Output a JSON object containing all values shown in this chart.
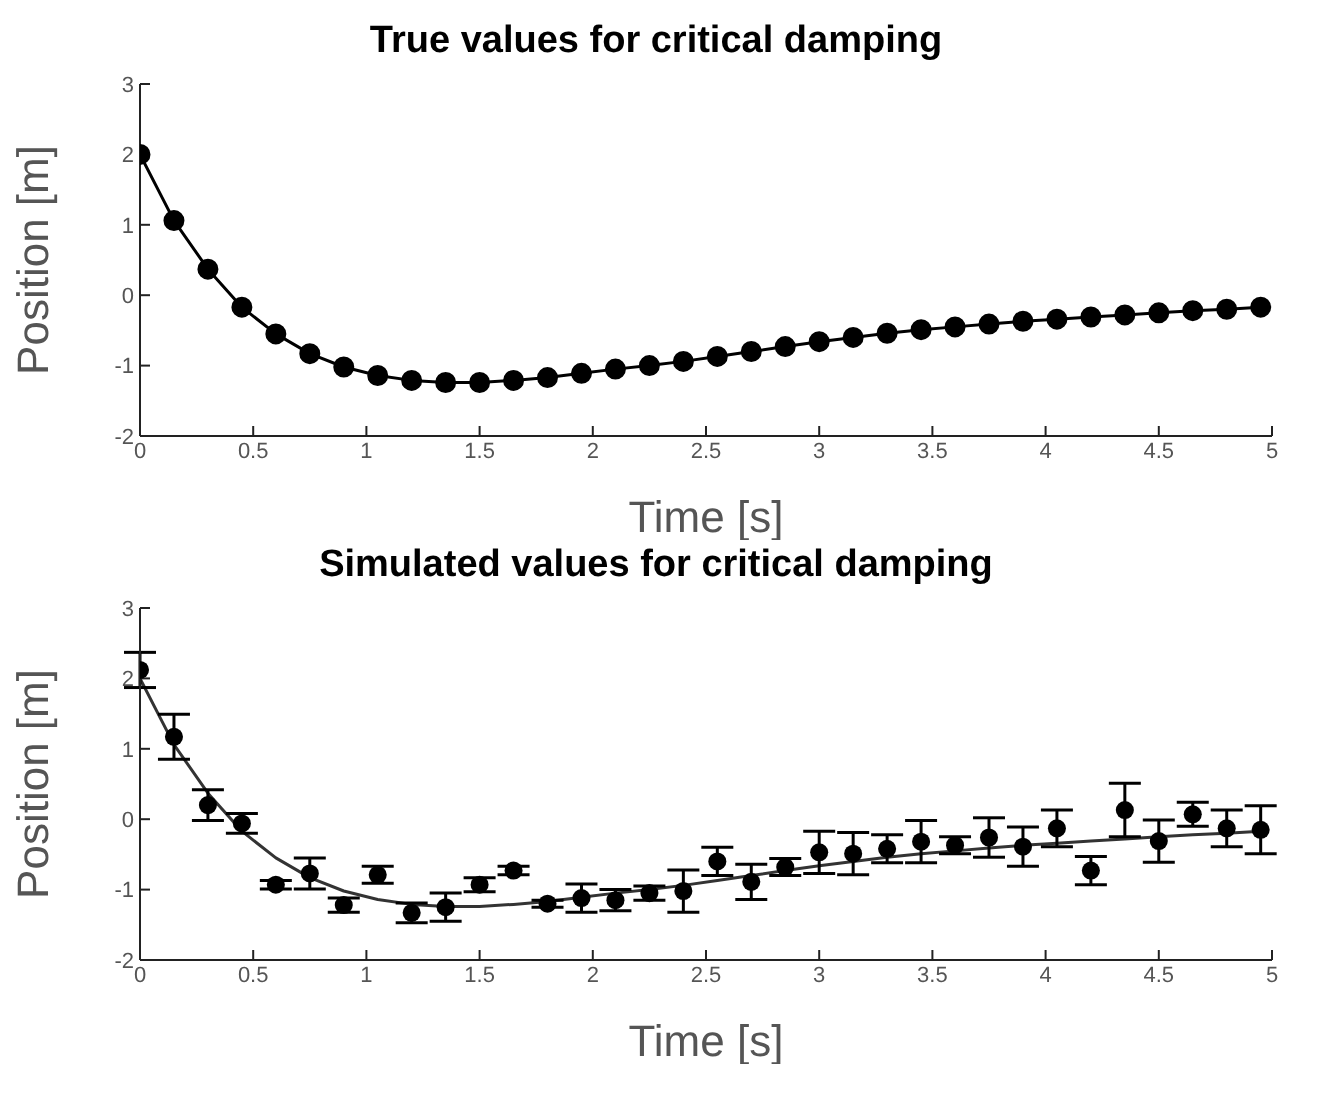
{
  "chart_data": [
    {
      "type": "line",
      "title": "True values for critical damping",
      "xlabel": "Time [s]",
      "ylabel": "Position [m]",
      "xlim": [
        0,
        5
      ],
      "xticks": [
        0,
        0.5,
        1,
        1.5,
        2,
        2.5,
        3,
        3.5,
        4,
        4.5,
        5
      ],
      "ylim": [
        -2,
        3
      ],
      "yticks": [
        -2,
        -1,
        0,
        1,
        2,
        3
      ],
      "grid": false,
      "marker": "circle",
      "line_style": "solid",
      "x": [
        0,
        0.15,
        0.3,
        0.45,
        0.6,
        0.75,
        0.9,
        1.05,
        1.2,
        1.35,
        1.5,
        1.65,
        1.8,
        1.95,
        2.1,
        2.25,
        2.4,
        2.55,
        2.7,
        2.85,
        3,
        3.15,
        3.3,
        3.45,
        3.6,
        3.75,
        3.9,
        4.05,
        4.2,
        4.35,
        4.5,
        4.65,
        4.8,
        4.95
      ],
      "series": [
        {
          "color": "#000000",
          "values": [
            2,
            1.06,
            0.37,
            -0.17,
            -0.55,
            -0.83,
            -1.02,
            -1.14,
            -1.21,
            -1.24,
            -1.24,
            -1.21,
            -1.17,
            -1.11,
            -1.05,
            -1.0,
            -0.94,
            -0.87,
            -0.8,
            -0.73,
            -0.66,
            -0.6,
            -0.54,
            -0.49,
            -0.45,
            -0.41,
            -0.37,
            -0.34,
            -0.31,
            -0.28,
            -0.25,
            -0.22,
            -0.2,
            -0.17
          ]
        }
      ]
    },
    {
      "type": "scatter",
      "title": "Simulated values for critical damping",
      "xlabel": "Time [s]",
      "ylabel": "Position [m]",
      "xlim": [
        0,
        5
      ],
      "xticks": [
        0,
        0.5,
        1,
        1.5,
        2,
        2.5,
        3,
        3.5,
        4,
        4.5,
        5
      ],
      "ylim": [
        -2,
        3
      ],
      "yticks": [
        -2,
        -1,
        0,
        1,
        2,
        3
      ],
      "grid": false,
      "marker": "circle",
      "x": [
        0,
        0.15,
        0.3,
        0.45,
        0.6,
        0.75,
        0.9,
        1.05,
        1.2,
        1.35,
        1.5,
        1.65,
        1.8,
        1.95,
        2.1,
        2.25,
        2.4,
        2.55,
        2.7,
        2.85,
        3,
        3.15,
        3.3,
        3.45,
        3.6,
        3.75,
        3.9,
        4.05,
        4.2,
        4.35,
        4.5,
        4.65,
        4.8,
        4.95
      ],
      "series": [
        {
          "type": "line",
          "marker": "none",
          "line_style": "solid",
          "color": "#333333",
          "values": [
            2,
            1.06,
            0.37,
            -0.17,
            -0.55,
            -0.83,
            -1.02,
            -1.14,
            -1.21,
            -1.24,
            -1.24,
            -1.21,
            -1.17,
            -1.11,
            -1.05,
            -1.0,
            -0.94,
            -0.87,
            -0.8,
            -0.73,
            -0.66,
            -0.6,
            -0.54,
            -0.49,
            -0.45,
            -0.41,
            -0.37,
            -0.34,
            -0.31,
            -0.28,
            -0.25,
            -0.22,
            -0.2,
            -0.17
          ]
        },
        {
          "color": "#000000",
          "values": [
            2.12,
            1.17,
            0.2,
            -0.06,
            -0.93,
            -0.77,
            -1.22,
            -0.79,
            -1.33,
            -1.25,
            -0.93,
            -0.73,
            -1.2,
            -1.12,
            -1.15,
            -1.05,
            -1.02,
            -0.6,
            -0.89,
            -0.68,
            -0.47,
            -0.49,
            -0.42,
            -0.32,
            -0.37,
            -0.26,
            -0.39,
            -0.13,
            -0.73,
            0.13,
            -0.31,
            0.07,
            -0.13,
            -0.15
          ],
          "errors": [
            0.25,
            0.32,
            0.22,
            0.14,
            0.06,
            0.22,
            0.1,
            0.12,
            0.14,
            0.2,
            0.1,
            0.06,
            0.05,
            0.2,
            0.15,
            0.1,
            0.3,
            0.2,
            0.25,
            0.12,
            0.3,
            0.3,
            0.2,
            0.3,
            0.12,
            0.28,
            0.28,
            0.26,
            0.2,
            0.38,
            0.3,
            0.17,
            0.26,
            0.34
          ]
        }
      ]
    }
  ]
}
